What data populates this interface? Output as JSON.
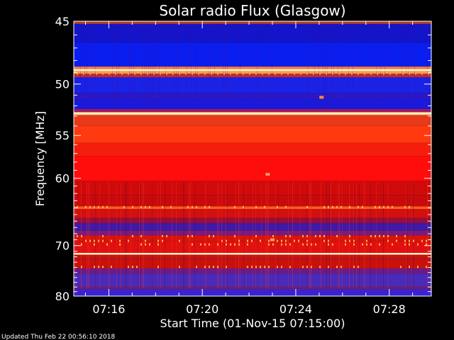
{
  "chart_data": {
    "type": "heatmap",
    "title": "Solar radio Flux (Glasgow)",
    "xlabel": "Start Time (01-Nov-15 07:15:00)",
    "ylabel": "Frequency [MHz]",
    "x_ticks": [
      "07:16",
      "07:20",
      "07:24",
      "07:28"
    ],
    "x_tick_minutes": [
      1,
      5,
      9,
      13
    ],
    "xlim_minutes": [
      -0.5,
      14.8
    ],
    "y_ticks": [
      45,
      50,
      55,
      60,
      70,
      80
    ],
    "ylim_mhz": [
      45,
      80
    ],
    "y_scale": "reciprocal",
    "footer": "Updated Thu Feb 22 00:56:10 2018",
    "bands": [
      {
        "from": 45.0,
        "to": 45.2,
        "color": "#b23a2a"
      },
      {
        "from": 45.2,
        "to": 46.6,
        "color": "#1414c8"
      },
      {
        "from": 46.6,
        "to": 48.5,
        "color": "#0a1ef0"
      },
      {
        "from": 48.5,
        "to": 48.7,
        "color": "#ff7a30"
      },
      {
        "from": 48.7,
        "to": 48.9,
        "color": "#ffe7a8"
      },
      {
        "from": 48.9,
        "to": 49.1,
        "color": "#ff9a50"
      },
      {
        "from": 49.1,
        "to": 49.4,
        "color": "#c02a2a"
      },
      {
        "from": 49.4,
        "to": 50.8,
        "color": "#1a22e6"
      },
      {
        "from": 50.8,
        "to": 51.4,
        "color": "#2a18c8"
      },
      {
        "from": 51.4,
        "to": 52.3,
        "color": "#1a1adc"
      },
      {
        "from": 52.3,
        "to": 52.6,
        "color": "#9a1a6a"
      },
      {
        "from": 52.6,
        "to": 52.9,
        "color": "#ffb070"
      },
      {
        "from": 52.9,
        "to": 54.0,
        "color": "#e83a1a"
      },
      {
        "from": 54.0,
        "to": 55.8,
        "color": "#ff3a10"
      },
      {
        "from": 55.8,
        "to": 57.3,
        "color": "#f51e0e"
      },
      {
        "from": 57.3,
        "to": 60.3,
        "color": "#ff0c0c"
      },
      {
        "from": 60.3,
        "to": 62.2,
        "color": "#d00a0a"
      },
      {
        "from": 62.2,
        "to": 63.8,
        "color": "#c80a0c"
      },
      {
        "from": 63.8,
        "to": 64.2,
        "color": "#ff5a20"
      },
      {
        "from": 64.2,
        "to": 65.5,
        "color": "#d21010"
      },
      {
        "from": 65.5,
        "to": 66.3,
        "color": "#9a0c3a"
      },
      {
        "from": 66.3,
        "to": 67.5,
        "color": "#3e1aa8"
      },
      {
        "from": 67.5,
        "to": 68.3,
        "color": "#7a1a7a"
      },
      {
        "from": 68.3,
        "to": 69.2,
        "color": "#d8140a"
      },
      {
        "from": 69.2,
        "to": 71.3,
        "color": "#e01010"
      },
      {
        "from": 71.3,
        "to": 71.6,
        "color": "#ffcf8a"
      },
      {
        "from": 71.6,
        "to": 72.4,
        "color": "#c01414"
      },
      {
        "from": 72.4,
        "to": 74.2,
        "color": "#c8100c"
      },
      {
        "from": 74.2,
        "to": 75.2,
        "color": "#6a1a8a"
      },
      {
        "from": 75.2,
        "to": 78.0,
        "color": "#4a2ab8"
      },
      {
        "from": 78.0,
        "to": 78.4,
        "color": "#8a1a5a"
      },
      {
        "from": 78.4,
        "to": 80.0,
        "color": "#3a22d0"
      }
    ],
    "spots": [
      {
        "t": 10.1,
        "f": 51.2,
        "color": "#ff8a3a"
      },
      {
        "t": 7.8,
        "f": 59.5,
        "color": "#ff9a6a"
      },
      {
        "t": 8.0,
        "f": 69.0,
        "color": "#ff9a6a"
      }
    ],
    "bright_lines_mhz": [
      48.8,
      71.45,
      52.75
    ],
    "dot_rows_mhz": [
      49.1,
      63.9,
      68.4,
      69.2,
      69.8,
      73.9
    ]
  }
}
